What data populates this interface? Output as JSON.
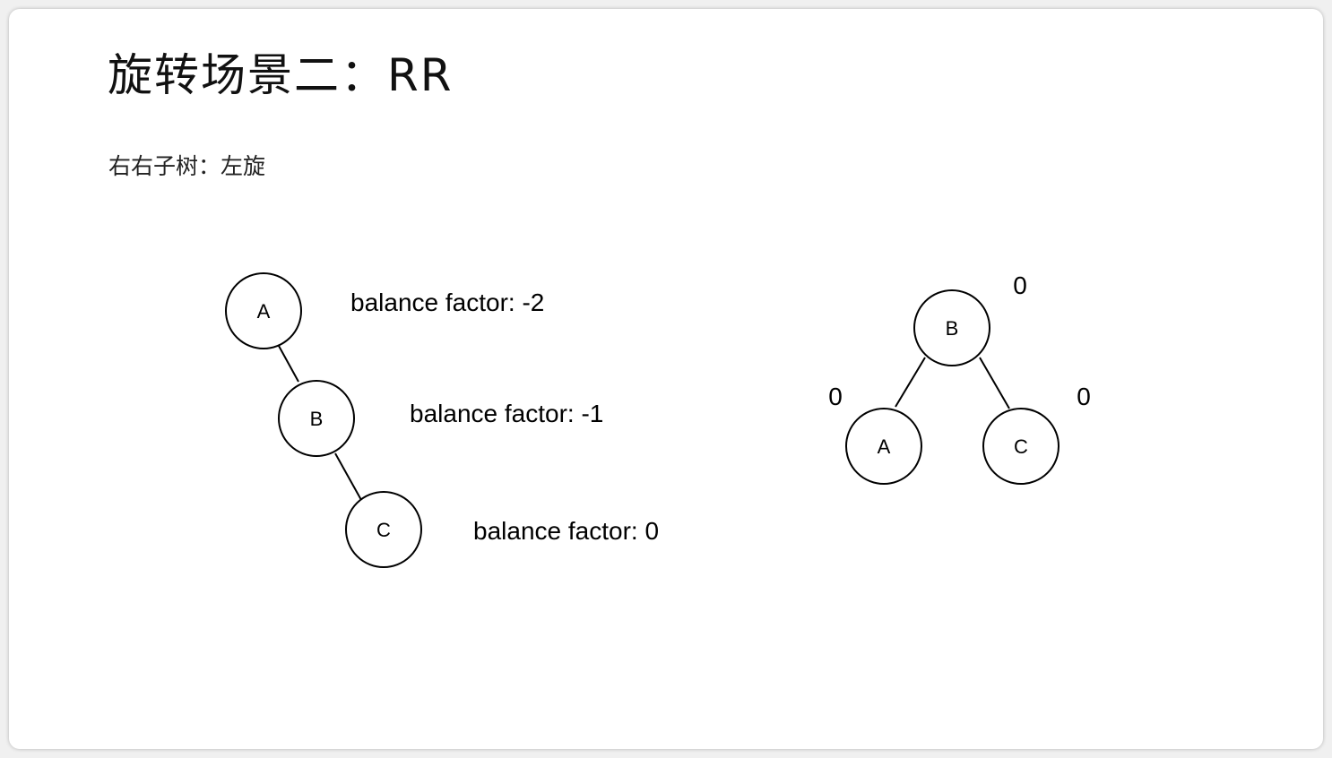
{
  "title": "旋转场景二：RR",
  "subtitle": "右右子树：左旋",
  "before": {
    "nodes": {
      "a": "A",
      "b": "B",
      "c": "C"
    },
    "factors": {
      "a": "balance factor: -2",
      "b": "balance factor: -1",
      "c": "balance factor: 0"
    }
  },
  "after": {
    "nodes": {
      "b": "B",
      "a": "A",
      "c": "C"
    },
    "factors": {
      "b": "0",
      "a": "0",
      "c": "0"
    }
  },
  "colors": {
    "background": "#ffffff",
    "stroke": "#000000",
    "text": "#000000"
  }
}
